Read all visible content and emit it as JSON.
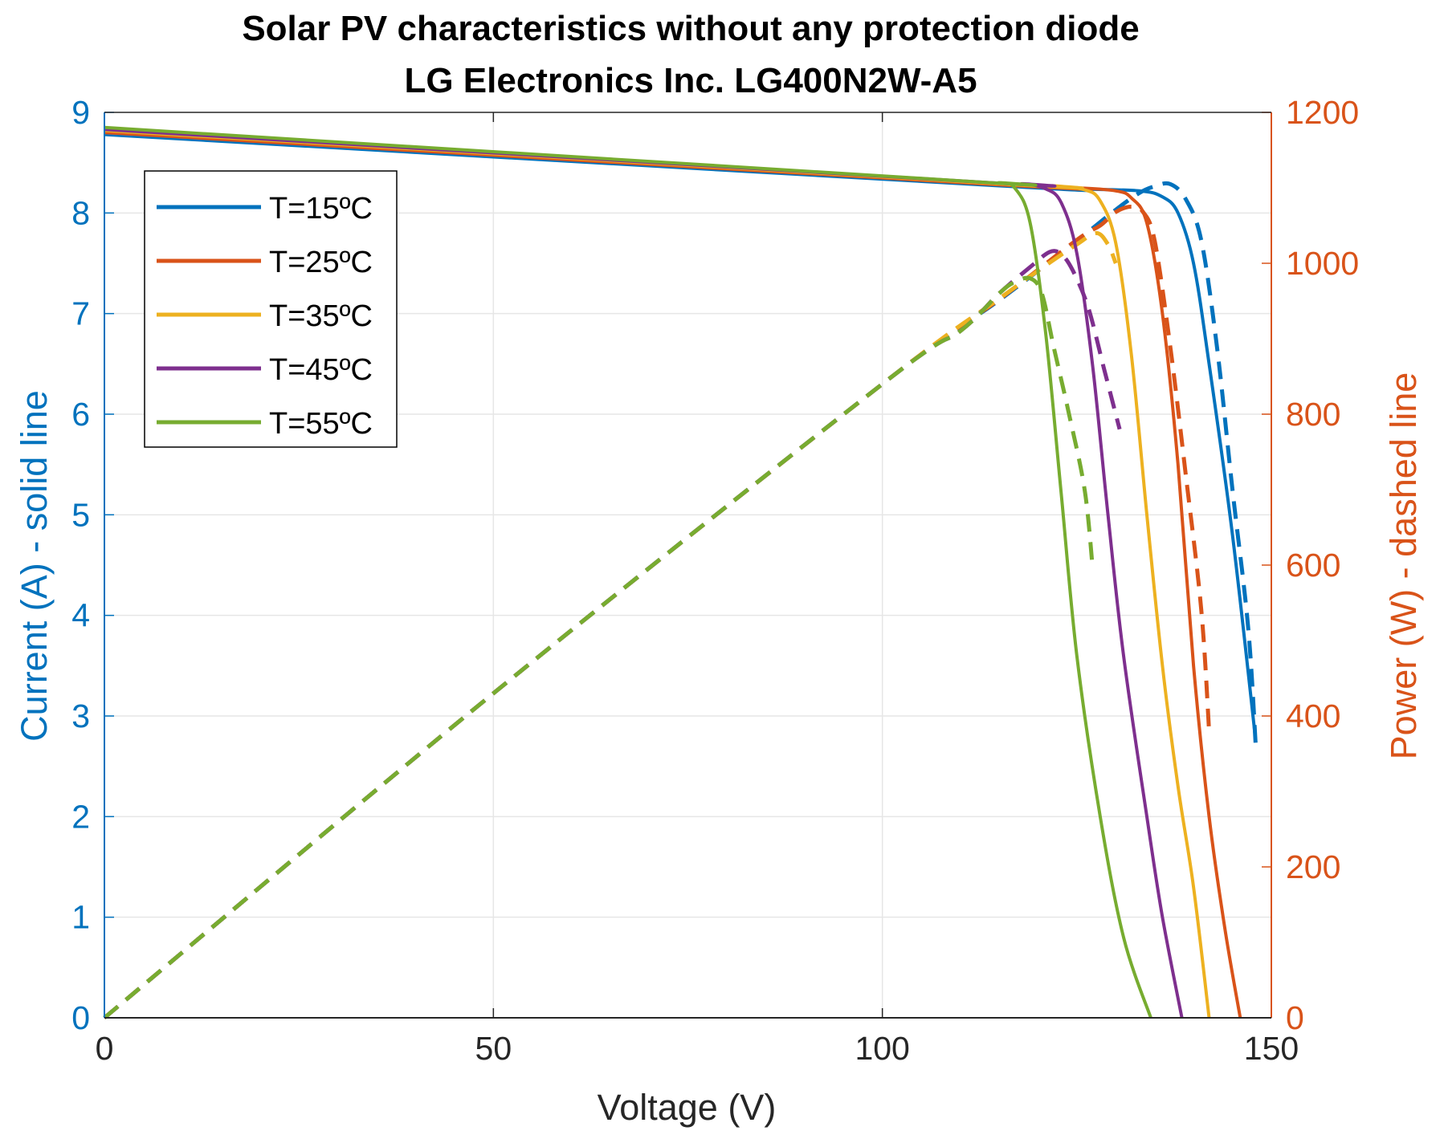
{
  "chart_data": {
    "type": "line",
    "title": [
      "Solar PV characteristics without any protection diode",
      "LG Electronics Inc. LG400N2W-A5"
    ],
    "xlabel": "Voltage (V)",
    "ylabel_left": "Current (A) - solid line",
    "ylabel_right": "Power (W) - dashed line",
    "xlim": [
      0,
      150
    ],
    "ylim_left": [
      0,
      9
    ],
    "ylim_right": [
      0,
      1200
    ],
    "x_ticks": [
      "0",
      "50",
      "100",
      "150"
    ],
    "y_left_ticks": [
      "0",
      "1",
      "2",
      "3",
      "4",
      "5",
      "6",
      "7",
      "8",
      "9"
    ],
    "y_right_ticks": [
      "0",
      "200",
      "400",
      "600",
      "800",
      "1000",
      "1200"
    ],
    "grid": true,
    "legend_position": "top-left",
    "colors": {
      "left_axis": "#0072BD",
      "right_axis": "#D95319",
      "text": "#262626"
    },
    "series": [
      {
        "name": "T=15ºC",
        "color": "#0072BD",
        "current_points": [
          [
            0,
            8.78
          ],
          [
            115,
            8.27
          ],
          [
            125,
            8.24
          ],
          [
            133,
            8.22
          ],
          [
            136,
            8.16
          ],
          [
            138,
            8.0
          ],
          [
            140,
            7.5
          ],
          [
            142,
            6.5
          ],
          [
            145,
            4.8
          ],
          [
            148,
            2.75
          ]
        ],
        "power_points": [
          [
            0,
            0
          ],
          [
            50,
            430
          ],
          [
            100,
            840
          ],
          [
            115,
            951
          ],
          [
            125,
            1030
          ],
          [
            130,
            1071
          ],
          [
            133,
            1093
          ],
          [
            135,
            1102
          ],
          [
            137,
            1105
          ],
          [
            139,
            1085
          ],
          [
            141,
            1030
          ],
          [
            143,
            890
          ],
          [
            145,
            700
          ],
          [
            147,
            520
          ],
          [
            148,
            360
          ]
        ]
      },
      {
        "name": "T=25ºC",
        "color": "#D95319",
        "current_points": [
          [
            0,
            8.8
          ],
          [
            115,
            8.28
          ],
          [
            125,
            8.25
          ],
          [
            130,
            8.22
          ],
          [
            132,
            8.15
          ],
          [
            134,
            7.9
          ],
          [
            136,
            7.0
          ],
          [
            138,
            5.5
          ],
          [
            140,
            3.5
          ],
          [
            142,
            2.0
          ],
          [
            144,
            0.9
          ],
          [
            146,
            0
          ]
        ],
        "power_points": [
          [
            0,
            0
          ],
          [
            50,
            430
          ],
          [
            100,
            840
          ],
          [
            115,
            952
          ],
          [
            125,
            1031
          ],
          [
            128,
            1050
          ],
          [
            130,
            1068
          ],
          [
            132,
            1075
          ],
          [
            133.5,
            1068
          ],
          [
            135,
            1030
          ],
          [
            137,
            890
          ],
          [
            139,
            720
          ],
          [
            141,
            540
          ],
          [
            142,
            380
          ]
        ]
      },
      {
        "name": "T=35ºC",
        "color": "#EDB120",
        "current_points": [
          [
            0,
            8.82
          ],
          [
            115,
            8.29
          ],
          [
            122,
            8.27
          ],
          [
            126,
            8.23
          ],
          [
            128,
            8.12
          ],
          [
            130,
            7.7
          ],
          [
            132,
            6.6
          ],
          [
            134,
            5.0
          ],
          [
            136,
            3.5
          ],
          [
            138,
            2.3
          ],
          [
            140,
            1.3
          ],
          [
            142,
            0
          ]
        ],
        "power_points": [
          [
            0,
            0
          ],
          [
            50,
            430
          ],
          [
            100,
            840
          ],
          [
            115,
            953
          ],
          [
            120,
            990
          ],
          [
            125,
            1025
          ],
          [
            127.5,
            1040
          ],
          [
            129,
            1025
          ],
          [
            130,
            1000
          ]
        ]
      },
      {
        "name": "T=45ºC",
        "color": "#7E2F8E",
        "current_points": [
          [
            0,
            8.83
          ],
          [
            112,
            8.31
          ],
          [
            118,
            8.29
          ],
          [
            121,
            8.24
          ],
          [
            123,
            8.1
          ],
          [
            125,
            7.6
          ],
          [
            127,
            6.5
          ],
          [
            129,
            5.0
          ],
          [
            131,
            3.6
          ],
          [
            134,
            2.0
          ],
          [
            136,
            1.0
          ],
          [
            138.5,
            0
          ]
        ],
        "power_points": [
          [
            0,
            0
          ],
          [
            50,
            430
          ],
          [
            100,
            840
          ],
          [
            110,
            910
          ],
          [
            115,
            960
          ],
          [
            119,
            995
          ],
          [
            121.5,
            1015
          ],
          [
            123,
            1012
          ],
          [
            124.5,
            990
          ],
          [
            126.5,
            940
          ],
          [
            128.5,
            860
          ],
          [
            130.5,
            780
          ]
        ]
      },
      {
        "name": "T=55ºC",
        "color": "#77AC30",
        "current_points": [
          [
            0,
            8.85
          ],
          [
            110,
            8.32
          ],
          [
            115,
            8.3
          ],
          [
            117,
            8.25
          ],
          [
            119,
            7.9
          ],
          [
            121,
            6.8
          ],
          [
            123,
            5.2
          ],
          [
            125,
            3.6
          ],
          [
            128,
            2.0
          ],
          [
            131,
            0.8
          ],
          [
            134.5,
            0
          ]
        ],
        "power_points": [
          [
            0,
            0
          ],
          [
            50,
            430
          ],
          [
            100,
            840
          ],
          [
            110,
            910
          ],
          [
            115,
            960
          ],
          [
            117,
            975
          ],
          [
            119,
            980
          ],
          [
            120.5,
            960
          ],
          [
            122,
            890
          ],
          [
            124,
            800
          ],
          [
            126,
            700
          ],
          [
            127,
            600
          ]
        ]
      }
    ]
  }
}
